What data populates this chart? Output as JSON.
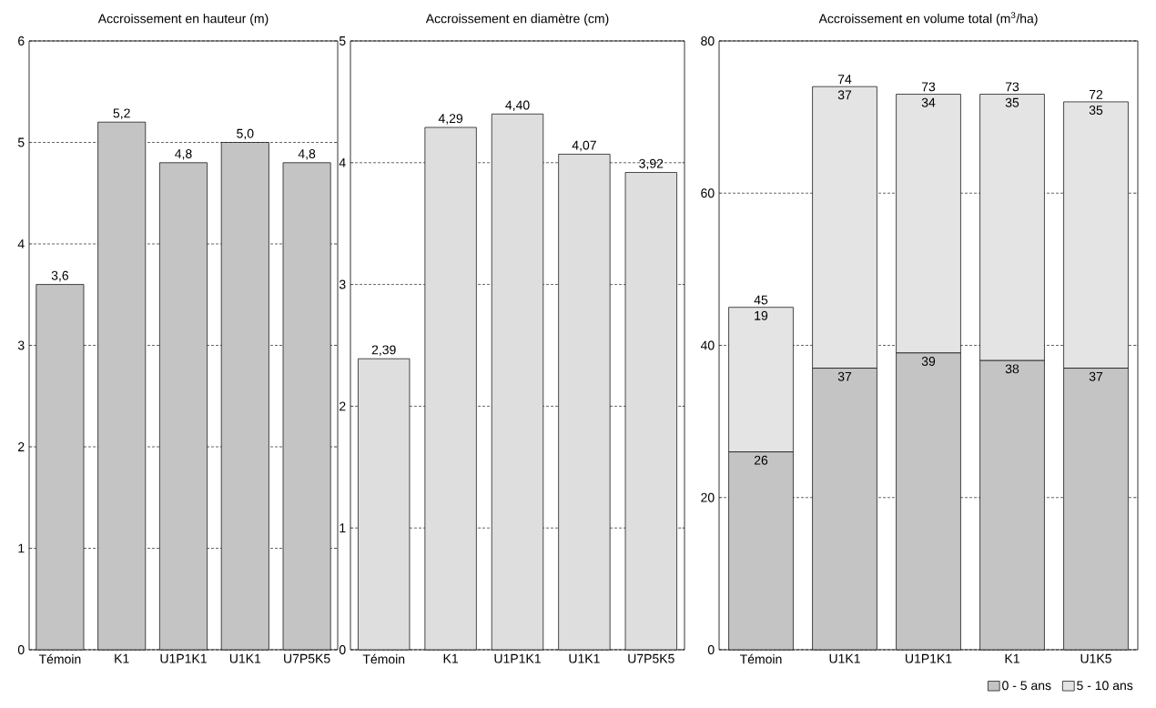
{
  "chart_data": [
    {
      "type": "bar",
      "title": "Accroissement en hauteur (m)",
      "categories": [
        "Témoin",
        "K1",
        "U1P1K1",
        "U1K1",
        "U7P5K5"
      ],
      "values": [
        3.6,
        5.2,
        4.8,
        5.0,
        4.8
      ],
      "value_labels": [
        "3,6",
        "5,2",
        "4,8",
        "5,0",
        "4,8"
      ],
      "color": "#c4c4c4",
      "ylim": [
        0,
        6
      ],
      "yticks": [
        0,
        1,
        2,
        3,
        4,
        5,
        6
      ],
      "grid": "y"
    },
    {
      "type": "bar",
      "title": "Accroissement en diamètre (cm)",
      "categories": [
        "Témoin",
        "K1",
        "U1P1K1",
        "U1K1",
        "U7P5K5"
      ],
      "values": [
        2.39,
        4.29,
        4.4,
        4.07,
        3.92
      ],
      "value_labels": [
        "2,39",
        "4,29",
        "4,40",
        "4,07",
        "3,92"
      ],
      "color": "#dedede",
      "ylim": [
        0,
        5
      ],
      "yticks": [
        0,
        1,
        2,
        3,
        4,
        5
      ],
      "grid": "y"
    },
    {
      "type": "bar",
      "title": "Accroissement en volume total (m$^{3}$/ha)",
      "categories": [
        "Témoin",
        "U1K1",
        "U1P1K1",
        "K1",
        "U1K5"
      ],
      "stacked": true,
      "series": [
        {
          "name": "0 - 5 ans",
          "color": "#c4c4c4",
          "values": [
            26,
            37,
            39,
            38,
            37
          ]
        },
        {
          "name": "5 - 10 ans",
          "color": "#e4e4e4",
          "values": [
            19,
            37,
            34,
            35,
            35
          ]
        }
      ],
      "data_labels": true,
      "totals": [
        "45",
        "74",
        "73",
        "73",
        "72"
      ],
      "ylim": [
        0,
        80
      ],
      "yticks": [
        0,
        20,
        40,
        60,
        80
      ],
      "grid": "y",
      "legend": "bottom"
    }
  ]
}
